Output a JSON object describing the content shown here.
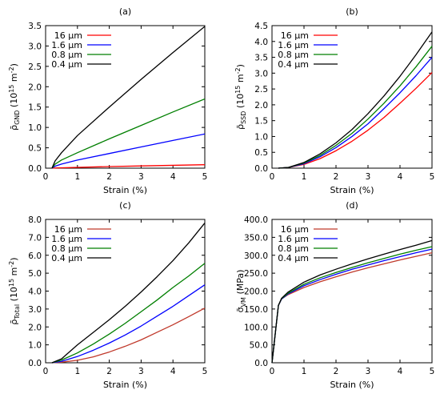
{
  "chart_data": [
    {
      "type": "line",
      "title": "(a)",
      "xlabel": "Strain (%)",
      "ylabel": "ρ̄GND (10¹⁵ m⁻²)",
      "ylabel_parts": {
        "sym": "ρ̄",
        "sub": "GND",
        "mid": " (10",
        "sup1": "15",
        "unit": " m",
        "sup2": "-2",
        "end": ")"
      },
      "xlim": [
        0,
        5
      ],
      "ylim": [
        0,
        3.5
      ],
      "xticks": [
        "0",
        "1",
        "2",
        "3",
        "4",
        "5"
      ],
      "yticks": [
        "0.0",
        "0.5",
        "1.0",
        "1.5",
        "2.0",
        "2.5",
        "3.0",
        "3.5"
      ],
      "legend_position": "top-left",
      "series": [
        {
          "name": "16 µm",
          "color": "#ff0000",
          "x": [
            0.2,
            0.3,
            1,
            2,
            3,
            4,
            5
          ],
          "y": [
            0,
            0.005,
            0.02,
            0.04,
            0.055,
            0.07,
            0.085
          ]
        },
        {
          "name": "1.6 µm",
          "color": "#0000ff",
          "x": [
            0.2,
            0.3,
            0.5,
            1,
            2,
            3,
            4,
            5
          ],
          "y": [
            0,
            0.05,
            0.1,
            0.2,
            0.36,
            0.52,
            0.68,
            0.84
          ]
        },
        {
          "name": "0.8 µm",
          "color": "#007f00",
          "x": [
            0.2,
            0.3,
            0.5,
            1,
            2,
            3,
            4,
            5
          ],
          "y": [
            0,
            0.1,
            0.2,
            0.38,
            0.72,
            1.05,
            1.38,
            1.7
          ]
        },
        {
          "name": "0.4 µm",
          "color": "#000000",
          "x": [
            0.2,
            0.3,
            0.5,
            1,
            2,
            3,
            4,
            5
          ],
          "y": [
            0,
            0.18,
            0.38,
            0.8,
            1.5,
            2.18,
            2.84,
            3.48
          ]
        }
      ]
    },
    {
      "type": "line",
      "title": "(b)",
      "xlabel": "Strain (%)",
      "ylabel": "ρ̄SSD (10¹⁵ m⁻²)",
      "ylabel_parts": {
        "sym": "ρ̄",
        "sub": "SSD",
        "mid": " (10",
        "sup1": "15",
        "unit": " m",
        "sup2": "-2",
        "end": ")"
      },
      "xlim": [
        0,
        5
      ],
      "ylim": [
        0,
        4.5
      ],
      "xticks": [
        "0",
        "1",
        "2",
        "3",
        "4",
        "5"
      ],
      "yticks": [
        "0.0",
        "0.5",
        "1.0",
        "1.5",
        "2.0",
        "2.5",
        "3.0",
        "3.5",
        "4.0",
        "4.5"
      ],
      "legend_position": "top-left",
      "series": [
        {
          "name": "16 µm",
          "color": "#ff0000",
          "x": [
            0.2,
            0.5,
            1,
            1.5,
            2,
            2.5,
            3,
            3.5,
            4,
            4.5,
            5
          ],
          "y": [
            0,
            0.02,
            0.12,
            0.3,
            0.55,
            0.85,
            1.2,
            1.6,
            2.05,
            2.52,
            3.02
          ]
        },
        {
          "name": "1.6 µm",
          "color": "#0000ff",
          "x": [
            0.2,
            0.5,
            1,
            1.5,
            2,
            2.5,
            3,
            3.5,
            4,
            4.5,
            5
          ],
          "y": [
            0,
            0.02,
            0.14,
            0.36,
            0.65,
            1.0,
            1.4,
            1.88,
            2.38,
            2.92,
            3.5
          ]
        },
        {
          "name": "0.8 µm",
          "color": "#007f00",
          "x": [
            0.2,
            0.5,
            1,
            1.5,
            2,
            2.5,
            3,
            3.5,
            4,
            4.5,
            5
          ],
          "y": [
            0,
            0.02,
            0.16,
            0.4,
            0.72,
            1.1,
            1.55,
            2.05,
            2.6,
            3.2,
            3.85
          ]
        },
        {
          "name": "0.4 µm",
          "color": "#000000",
          "x": [
            0.2,
            0.5,
            1,
            1.5,
            2,
            2.5,
            3,
            3.5,
            4,
            4.5,
            5
          ],
          "y": [
            0,
            0.02,
            0.18,
            0.45,
            0.8,
            1.22,
            1.72,
            2.28,
            2.9,
            3.58,
            4.3
          ]
        }
      ]
    },
    {
      "type": "line",
      "title": "(c)",
      "xlabel": "Strain (%)",
      "ylabel": "ρ̄Total (10¹⁵ m⁻²)",
      "ylabel_parts": {
        "sym": "ρ̄",
        "sub": "Total",
        "mid": " (10",
        "sup1": "15",
        "unit": " m",
        "sup2": "-2",
        "end": ")"
      },
      "xlim": [
        0,
        5
      ],
      "ylim": [
        0,
        8
      ],
      "xticks": [
        "0",
        "1",
        "2",
        "3",
        "4",
        "5"
      ],
      "yticks": [
        "0.0",
        "1.0",
        "2.0",
        "3.0",
        "4.0",
        "5.0",
        "6.0",
        "7.0",
        "8.0"
      ],
      "legend_position": "top-left",
      "series": [
        {
          "name": "16 µm",
          "color": "#c0392b",
          "x": [
            0.2,
            0.5,
            1,
            1.5,
            2,
            2.5,
            3,
            3.5,
            4,
            4.5,
            5
          ],
          "y": [
            0,
            0.03,
            0.14,
            0.33,
            0.6,
            0.92,
            1.28,
            1.7,
            2.12,
            2.58,
            3.05
          ]
        },
        {
          "name": "1.6 µm",
          "color": "#0000ff",
          "x": [
            0.2,
            0.5,
            1,
            1.5,
            2,
            2.5,
            3,
            3.5,
            4,
            4.5,
            5
          ],
          "y": [
            0,
            0.08,
            0.35,
            0.7,
            1.1,
            1.55,
            2.05,
            2.6,
            3.15,
            3.75,
            4.35
          ]
        },
        {
          "name": "0.8 µm",
          "color": "#007f00",
          "x": [
            0.2,
            0.5,
            1,
            1.5,
            2,
            2.5,
            3,
            3.5,
            4,
            4.5,
            5
          ],
          "y": [
            0,
            0.15,
            0.55,
            1.05,
            1.6,
            2.2,
            2.85,
            3.5,
            4.2,
            4.85,
            5.55
          ]
        },
        {
          "name": "0.4 µm",
          "color": "#000000",
          "x": [
            0.2,
            0.5,
            1,
            1.5,
            2,
            2.5,
            3,
            3.5,
            4,
            4.5,
            5
          ],
          "y": [
            0,
            0.22,
            1.0,
            1.7,
            2.4,
            3.15,
            3.95,
            4.8,
            5.7,
            6.7,
            7.8
          ]
        }
      ]
    },
    {
      "type": "line",
      "title": "(d)",
      "xlabel": "Strain (%)",
      "ylabel": "σ̄VM (MPa)",
      "ylabel_parts": {
        "sym": "σ̄",
        "sub": "VM",
        "mid": " (MPa)",
        "sup1": "",
        "unit": "",
        "sup2": "",
        "end": ""
      },
      "xlim": [
        0,
        5
      ],
      "ylim": [
        0,
        400
      ],
      "xticks": [
        "0",
        "1",
        "2",
        "3",
        "4",
        "5"
      ],
      "yticks": [
        "0.0",
        "50.0",
        "100.0",
        "150.0",
        "200.0",
        "250.0",
        "300.0",
        "350.0",
        "400.0"
      ],
      "legend_position": "top-left",
      "series": [
        {
          "name": "16 µm",
          "color": "#c0392b",
          "x": [
            0,
            0.2,
            0.3,
            0.5,
            1,
            1.5,
            2,
            2.5,
            3,
            3.5,
            4,
            4.5,
            5
          ],
          "y": [
            0,
            160,
            178,
            190,
            210,
            226,
            240,
            253,
            265,
            276,
            287,
            297,
            307
          ]
        },
        {
          "name": "1.6 µm",
          "color": "#0000ff",
          "x": [
            0,
            0.2,
            0.3,
            0.5,
            1,
            1.5,
            2,
            2.5,
            3,
            3.5,
            4,
            4.5,
            5
          ],
          "y": [
            0,
            160,
            178,
            192,
            215,
            232,
            247,
            261,
            273,
            285,
            296,
            307,
            317
          ]
        },
        {
          "name": "0.8 µm",
          "color": "#007f00",
          "x": [
            0,
            0.2,
            0.3,
            0.5,
            1,
            1.5,
            2,
            2.5,
            3,
            3.5,
            4,
            4.5,
            5
          ],
          "y": [
            0,
            160,
            179,
            194,
            219,
            237,
            252,
            266,
            279,
            291,
            303,
            314,
            324
          ]
        },
        {
          "name": "0.4 µm",
          "color": "#000000",
          "x": [
            0,
            0.2,
            0.3,
            0.5,
            1,
            1.5,
            2,
            2.5,
            3,
            3.5,
            4,
            4.5,
            5
          ],
          "y": [
            0,
            160,
            180,
            197,
            225,
            245,
            261,
            276,
            290,
            303,
            316,
            328,
            341
          ]
        }
      ]
    }
  ]
}
